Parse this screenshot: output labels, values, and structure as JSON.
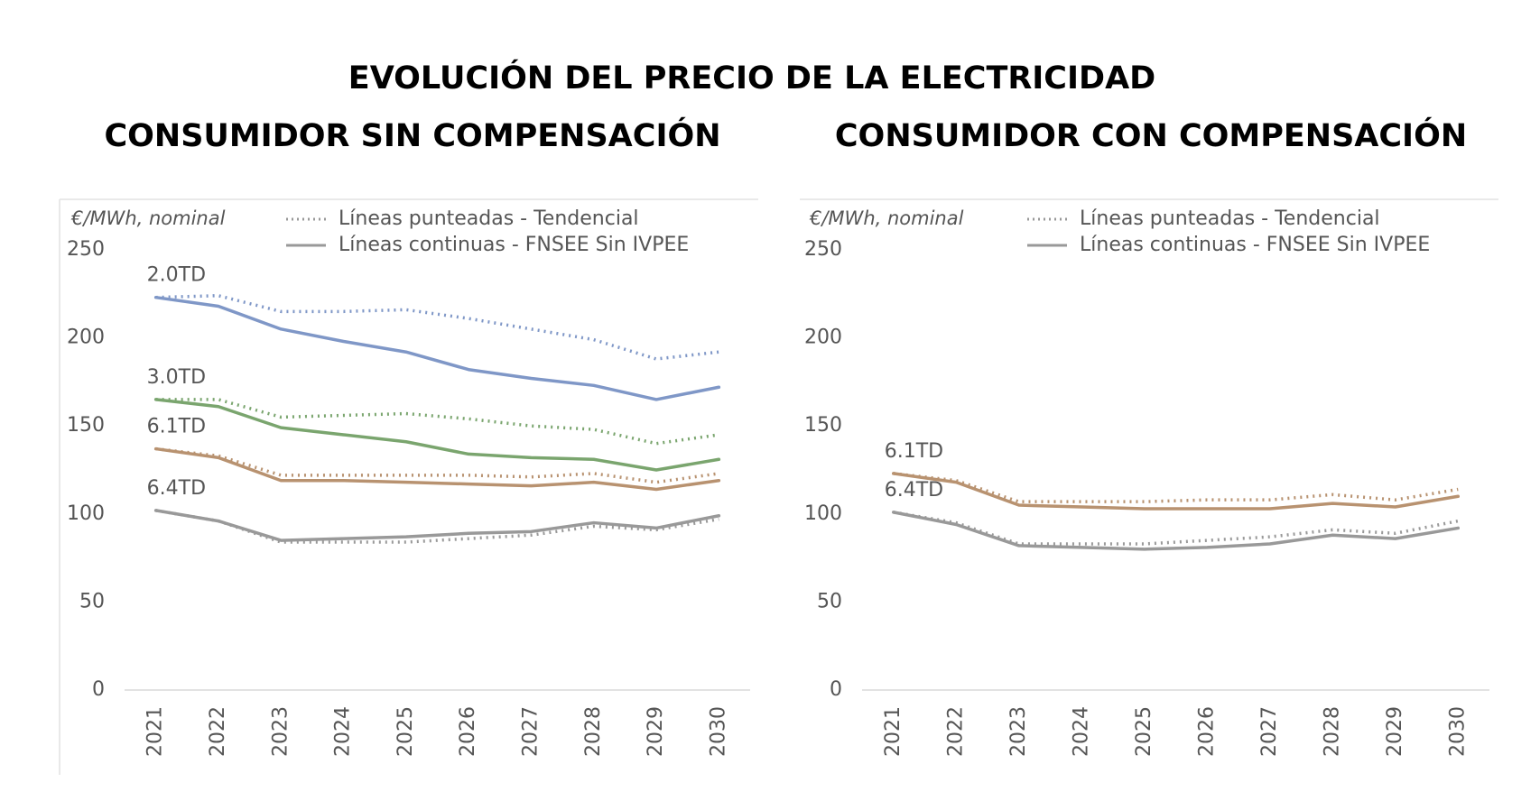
{
  "title": "EVOLUCIÓN DEL PRECIO DE LA ELECTRICIDAD",
  "chart_data": [
    {
      "type": "line",
      "title": "CONSUMIDOR SIN COMPENSACIÓN",
      "y_label": "€/MWh, nominal",
      "legend": {
        "position": "top",
        "entries": [
          {
            "label": "Líneas punteadas - Tendencial",
            "style": "dotted"
          },
          {
            "label": "Líneas continuas - FNSEE Sin IVPEE",
            "style": "solid"
          }
        ]
      },
      "categories": [
        "2021",
        "2022",
        "2023",
        "2024",
        "2025",
        "2026",
        "2027",
        "2028",
        "2029",
        "2030"
      ],
      "ylim": [
        0,
        250
      ],
      "yticks": [
        0,
        50,
        100,
        150,
        200,
        250
      ],
      "grid": false,
      "series": [
        {
          "name": "2.0TD",
          "color": "#7f97c7",
          "values": [
            223,
            218,
            205,
            198,
            192,
            182,
            177,
            173,
            165,
            172
          ],
          "trend_values": [
            223,
            224,
            215,
            215,
            216,
            211,
            205,
            199,
            188,
            192
          ]
        },
        {
          "name": "3.0TD",
          "color": "#7aa56e",
          "values": [
            165,
            161,
            149,
            145,
            141,
            134,
            132,
            131,
            125,
            131
          ],
          "trend_values": [
            165,
            165,
            155,
            156,
            157,
            154,
            150,
            148,
            140,
            145
          ]
        },
        {
          "name": "6.1TD",
          "color": "#b89270",
          "values": [
            137,
            132,
            119,
            119,
            118,
            117,
            116,
            118,
            114,
            119
          ],
          "trend_values": [
            137,
            133,
            122,
            122,
            122,
            122,
            121,
            123,
            118,
            123
          ]
        },
        {
          "name": "6.4TD",
          "color": "#999999",
          "values": [
            102,
            96,
            85,
            86,
            87,
            89,
            90,
            95,
            92,
            99
          ],
          "trend_values": [
            102,
            96,
            84,
            84,
            84,
            86,
            88,
            93,
            91,
            97
          ]
        }
      ]
    },
    {
      "type": "line",
      "title": "CONSUMIDOR CON COMPENSACIÓN",
      "y_label": "€/MWh, nominal",
      "legend": {
        "position": "top",
        "entries": [
          {
            "label": "Líneas punteadas - Tendencial",
            "style": "dotted"
          },
          {
            "label": "Líneas continuas - FNSEE Sin IVPEE",
            "style": "solid"
          }
        ]
      },
      "categories": [
        "2021",
        "2022",
        "2023",
        "2024",
        "2025",
        "2026",
        "2027",
        "2028",
        "2029",
        "2030"
      ],
      "ylim": [
        0,
        250
      ],
      "yticks": [
        0,
        50,
        100,
        150,
        200,
        250
      ],
      "grid": false,
      "series": [
        {
          "name": "6.1TD",
          "color": "#b89270",
          "values": [
            123,
            118,
            105,
            104,
            103,
            103,
            103,
            106,
            104,
            110
          ],
          "trend_values": [
            123,
            119,
            107,
            107,
            107,
            108,
            108,
            111,
            108,
            114
          ]
        },
        {
          "name": "6.4TD",
          "color": "#999999",
          "values": [
            101,
            94,
            82,
            81,
            80,
            81,
            83,
            88,
            86,
            92
          ],
          "trend_values": [
            101,
            95,
            83,
            83,
            83,
            85,
            87,
            91,
            89,
            96
          ]
        }
      ]
    }
  ]
}
